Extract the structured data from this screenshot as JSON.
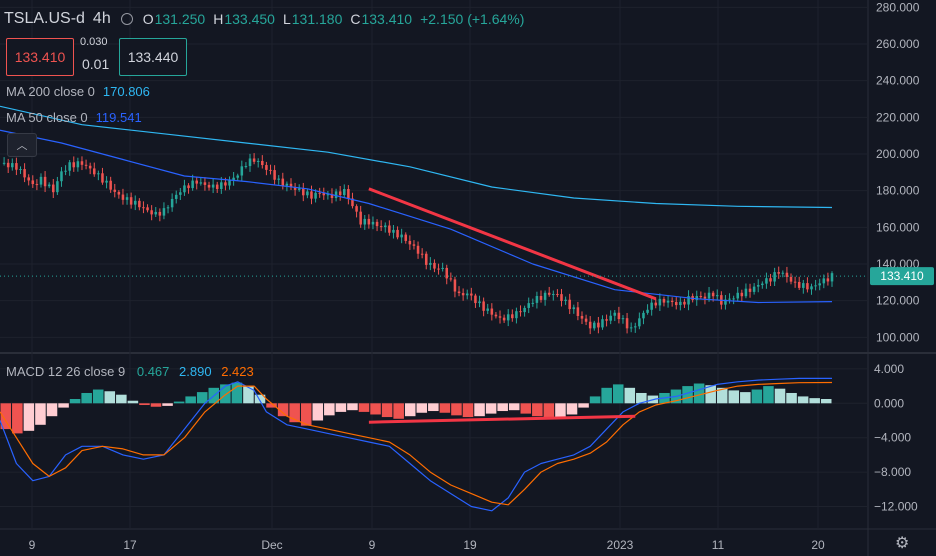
{
  "header": {
    "symbol": "TSLA.US-d",
    "interval": "4h",
    "open_label": "O",
    "open": "131.250",
    "high_label": "H",
    "high": "133.450",
    "low_label": "L",
    "low": "131.180",
    "close_label": "C",
    "close": "133.410",
    "change": "+2.150 (+1.64%)"
  },
  "trade": {
    "sell": "133.410",
    "buy": "133.440",
    "spread": "0.030",
    "lot": "0.01"
  },
  "ma200": {
    "label": "MA 200 close 0",
    "value": "170.806",
    "color": "#2fb7f2"
  },
  "ma50": {
    "label": "MA 50 close 0",
    "value": "119.541",
    "color": "#2962ff"
  },
  "macd": {
    "label": "MACD 12 26 close 9",
    "hist": "0.467",
    "macd": "2.890",
    "signal": "2.423",
    "colors": {
      "macd": "#2962ff",
      "signal": "#ff6d00",
      "hist_up": "#26a69a",
      "hist_up_weak": "#b2dfdb",
      "hist_down": "#ef5350",
      "hist_down_weak": "#ffcdd2"
    }
  },
  "chart_data": [
    {
      "type": "candlestick",
      "title": "TSLA.US-d 4h",
      "y_ticks": [
        "280.000",
        "260.000",
        "240.000",
        "220.000",
        "200.000",
        "180.000",
        "160.000",
        "140.000",
        "120.000",
        "100.000"
      ],
      "ylim": [
        92,
        284
      ],
      "last_price_label": "133.410",
      "x_ticks": [
        "9",
        "17",
        "Dec",
        "9",
        "19",
        "2023",
        "11",
        "20"
      ],
      "colors": {
        "up": "#26a69a",
        "down": "#ef5350",
        "trendline": "#f23645"
      },
      "close_path": [
        [
          0,
          195
        ],
        [
          4,
          193
        ],
        [
          8,
          183
        ],
        [
          10,
          186
        ],
        [
          13,
          180
        ],
        [
          15,
          190
        ],
        [
          17,
          194
        ],
        [
          20,
          195
        ],
        [
          23,
          190
        ],
        [
          26,
          184
        ],
        [
          28,
          179
        ],
        [
          30,
          176
        ],
        [
          32,
          174
        ],
        [
          34,
          172
        ],
        [
          36,
          169
        ],
        [
          38,
          167
        ],
        [
          40,
          169
        ],
        [
          42,
          175
        ],
        [
          44,
          180
        ],
        [
          46,
          183
        ],
        [
          48,
          185
        ],
        [
          50,
          183
        ],
        [
          52,
          182
        ],
        [
          54,
          183
        ],
        [
          56,
          185
        ],
        [
          58,
          189
        ],
        [
          60,
          195
        ],
        [
          62,
          197
        ],
        [
          64,
          194
        ],
        [
          66,
          190
        ],
        [
          68,
          185
        ],
        [
          70,
          183
        ],
        [
          72,
          181
        ],
        [
          74,
          179
        ],
        [
          76,
          177
        ],
        [
          78,
          179
        ],
        [
          80,
          177
        ],
        [
          82,
          178
        ],
        [
          84,
          180
        ],
        [
          86,
          172
        ],
        [
          88,
          163
        ],
        [
          90,
          163
        ],
        [
          92,
          161
        ],
        [
          94,
          160
        ],
        [
          96,
          157
        ],
        [
          98,
          155
        ],
        [
          100,
          151
        ],
        [
          102,
          147
        ],
        [
          104,
          141
        ],
        [
          106,
          138
        ],
        [
          108,
          137
        ],
        [
          110,
          130
        ],
        [
          112,
          123
        ],
        [
          114,
          124
        ],
        [
          116,
          120
        ],
        [
          118,
          116
        ],
        [
          120,
          113
        ],
        [
          122,
          110
        ],
        [
          124,
          111
        ],
        [
          126,
          113
        ],
        [
          128,
          116
        ],
        [
          130,
          120
        ],
        [
          132,
          122
        ],
        [
          134,
          124
        ],
        [
          136,
          123
        ],
        [
          138,
          119
        ],
        [
          140,
          115
        ],
        [
          142,
          110
        ],
        [
          144,
          106
        ],
        [
          146,
          107
        ],
        [
          148,
          110
        ],
        [
          150,
          113
        ],
        [
          152,
          109
        ],
        [
          154,
          104
        ],
        [
          156,
          110
        ],
        [
          158,
          116
        ],
        [
          160,
          119
        ],
        [
          162,
          120
        ],
        [
          164,
          119
        ],
        [
          166,
          118
        ],
        [
          168,
          121
        ],
        [
          170,
          122
        ],
        [
          172,
          122
        ],
        [
          174,
          124
        ],
        [
          176,
          119
        ],
        [
          178,
          121
        ],
        [
          180,
          123
        ],
        [
          182,
          125
        ],
        [
          184,
          127
        ],
        [
          186,
          130
        ],
        [
          188,
          132
        ],
        [
          190,
          136
        ],
        [
          192,
          133
        ],
        [
          194,
          129
        ],
        [
          196,
          128
        ],
        [
          198,
          127
        ],
        [
          200,
          130
        ],
        [
          202,
          132
        ],
        [
          203,
          133.41
        ]
      ],
      "ma200": [
        [
          0,
          226
        ],
        [
          20,
          216
        ],
        [
          40,
          211
        ],
        [
          60,
          206
        ],
        [
          80,
          201
        ],
        [
          100,
          193
        ],
        [
          120,
          182
        ],
        [
          140,
          176
        ],
        [
          160,
          173
        ],
        [
          180,
          171.5
        ],
        [
          203,
          170.8
        ]
      ],
      "ma50": [
        [
          0,
          213
        ],
        [
          15,
          206
        ],
        [
          30,
          197
        ],
        [
          45,
          188
        ],
        [
          60,
          185
        ],
        [
          75,
          181
        ],
        [
          90,
          173
        ],
        [
          110,
          159
        ],
        [
          130,
          140
        ],
        [
          150,
          126
        ],
        [
          170,
          121
        ],
        [
          185,
          119
        ],
        [
          203,
          119.5
        ]
      ],
      "trendline": [
        [
          90,
          181
        ],
        [
          160,
          121
        ]
      ]
    },
    {
      "type": "macd",
      "y_ticks": [
        "4.000",
        "0.000",
        "−4.000",
        "−8.000",
        "−12.000"
      ],
      "ylim": [
        -14.5,
        5.5
      ],
      "histogram": [
        -3,
        -3.5,
        -3.2,
        -2.5,
        -1.5,
        -0.5,
        0.5,
        1.2,
        1.6,
        1.4,
        1,
        0.3,
        -0.2,
        -0.4,
        -0.3,
        0.2,
        0.8,
        1.3,
        1.8,
        2.2,
        2.4,
        2.0,
        1.0,
        -0.5,
        -1.5,
        -2.2,
        -2.6,
        -2.0,
        -1.4,
        -1.0,
        -0.8,
        -1.0,
        -1.3,
        -1.6,
        -1.8,
        -1.5,
        -1.1,
        -0.9,
        -1.1,
        -1.4,
        -1.6,
        -1.5,
        -1.2,
        -0.9,
        -0.8,
        -1.2,
        -1.5,
        -1.8,
        -1.6,
        -1.3,
        -0.5,
        0.8,
        1.8,
        2.2,
        1.8,
        1.2,
        0.9,
        1.2,
        1.6,
        2.0,
        2.3,
        2.1,
        1.8,
        1.5,
        1.3,
        1.6,
        2.0,
        1.7,
        1.2,
        0.8,
        0.6,
        0.5
      ],
      "macd_line": [
        [
          0,
          -2
        ],
        [
          4,
          -7
        ],
        [
          8,
          -9
        ],
        [
          12,
          -8.5
        ],
        [
          16,
          -6
        ],
        [
          20,
          -5
        ],
        [
          25,
          -5
        ],
        [
          30,
          -6
        ],
        [
          35,
          -6.5
        ],
        [
          40,
          -6
        ],
        [
          45,
          -3
        ],
        [
          50,
          0
        ],
        [
          55,
          2
        ],
        [
          58,
          2.5
        ],
        [
          62,
          1.5
        ],
        [
          65,
          -1
        ],
        [
          70,
          -2.5
        ],
        [
          75,
          -3
        ],
        [
          80,
          -3.5
        ],
        [
          85,
          -4
        ],
        [
          90,
          -4.5
        ],
        [
          95,
          -5
        ],
        [
          100,
          -7
        ],
        [
          105,
          -9
        ],
        [
          110,
          -10.5
        ],
        [
          115,
          -12
        ],
        [
          120,
          -12.5
        ],
        [
          124,
          -11
        ],
        [
          128,
          -8
        ],
        [
          132,
          -7
        ],
        [
          136,
          -6.5
        ],
        [
          140,
          -6
        ],
        [
          144,
          -5
        ],
        [
          148,
          -3
        ],
        [
          152,
          -1
        ],
        [
          156,
          0
        ],
        [
          160,
          0.5
        ],
        [
          165,
          0.8
        ],
        [
          170,
          1.5
        ],
        [
          175,
          2.2
        ],
        [
          180,
          2.5
        ],
        [
          185,
          2.7
        ],
        [
          190,
          2.8
        ],
        [
          195,
          2.9
        ],
        [
          203,
          2.89
        ]
      ],
      "signal_line": [
        [
          0,
          -1
        ],
        [
          4,
          -4
        ],
        [
          8,
          -7
        ],
        [
          12,
          -8.5
        ],
        [
          16,
          -7.5
        ],
        [
          20,
          -5.5
        ],
        [
          25,
          -5
        ],
        [
          30,
          -5.3
        ],
        [
          35,
          -6
        ],
        [
          40,
          -6
        ],
        [
          45,
          -4
        ],
        [
          50,
          -1
        ],
        [
          55,
          1
        ],
        [
          58,
          2
        ],
        [
          62,
          2
        ],
        [
          65,
          0.5
        ],
        [
          70,
          -1.5
        ],
        [
          75,
          -2.5
        ],
        [
          80,
          -3
        ],
        [
          85,
          -3.5
        ],
        [
          90,
          -4
        ],
        [
          95,
          -4.5
        ],
        [
          100,
          -6
        ],
        [
          105,
          -8
        ],
        [
          110,
          -9.5
        ],
        [
          115,
          -10.5
        ],
        [
          120,
          -11.5
        ],
        [
          124,
          -11.8
        ],
        [
          128,
          -10
        ],
        [
          132,
          -8
        ],
        [
          136,
          -7
        ],
        [
          140,
          -6.5
        ],
        [
          144,
          -5.8
        ],
        [
          148,
          -4.5
        ],
        [
          152,
          -2.5
        ],
        [
          156,
          -1
        ],
        [
          160,
          -0.2
        ],
        [
          165,
          0.3
        ],
        [
          170,
          0.9
        ],
        [
          175,
          1.5
        ],
        [
          180,
          2
        ],
        [
          185,
          2.2
        ],
        [
          190,
          2.3
        ],
        [
          195,
          2.4
        ],
        [
          203,
          2.42
        ]
      ],
      "trendline": [
        [
          90,
          -2.2
        ],
        [
          155,
          -1.5
        ]
      ]
    }
  ]
}
